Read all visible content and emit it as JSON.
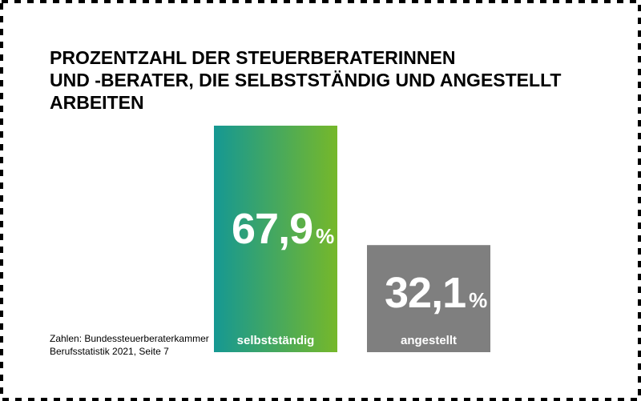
{
  "chart_data": {
    "type": "bar",
    "title": [
      "PROZENTZAHL DER STEUERBERATERINNEN",
      "UND -BERATER, DIE SELBSTSTÄNDIG UND ANGESTELLT",
      "ARBEITEN"
    ],
    "categories": [
      "selbstständig",
      "angestellt"
    ],
    "values": [
      67.9,
      32.1
    ],
    "value_labels": [
      "67,9",
      "32,1"
    ],
    "value_unit": "%",
    "colors": [
      [
        "#159893",
        "#76b82a"
      ],
      [
        "#7f7f7f",
        "#7f7f7f"
      ]
    ],
    "source": [
      "Zahlen: Bundessteuerberaterkammer",
      "Berufsstatistik 2021, Seite 7"
    ]
  }
}
